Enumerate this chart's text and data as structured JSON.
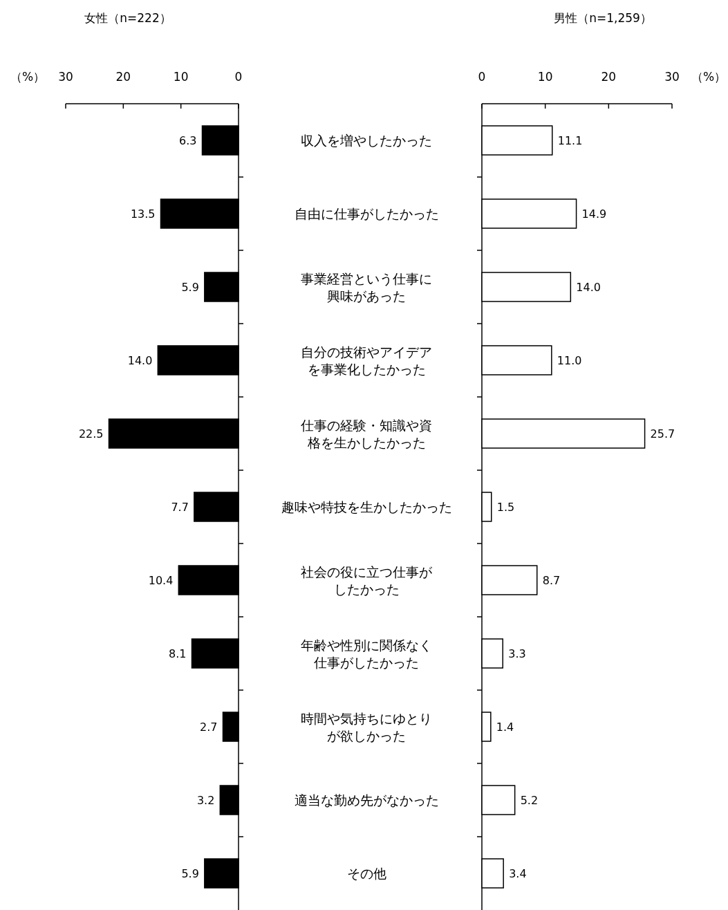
{
  "chart_data": [
    {
      "type": "bar",
      "orientation": "horizontal",
      "title": "女性（n=222）",
      "xlabel": "（%）",
      "categories": [
        "収入を増やしたかった",
        "自由に仕事がしたかった",
        "事業経営という仕事に興味があった",
        "自分の技術やアイデアを事業化したかった",
        "仕事の経験・知識や資格を生かしたかった",
        "趣味や特技を生かしたかった",
        "社会の役に立つ仕事がしたかった",
        "年齢や性別に関係なく仕事がしたかった",
        "時間や気持ちにゆとりが欲しかった",
        "適当な勤め先がなかった",
        "その他"
      ],
      "values": [
        6.3,
        13.5,
        5.9,
        14.0,
        22.5,
        7.7,
        10.4,
        8.1,
        2.7,
        3.2,
        5.9
      ],
      "value_labels": [
        "6.3",
        "13.5",
        "5.9",
        "14.0",
        "22.5",
        "7.7",
        "10.4",
        "8.1",
        "2.7",
        "3.2",
        "5.9"
      ],
      "color": "#000000",
      "xlim": [
        30,
        0
      ],
      "xticks": [
        0,
        10,
        20,
        30
      ]
    },
    {
      "type": "bar",
      "orientation": "horizontal",
      "title": "男性（n=1,259）",
      "xlabel": "（%）",
      "categories": [
        "収入を増やしたかった",
        "自由に仕事がしたかった",
        "事業経営という仕事に興味があった",
        "自分の技術やアイデアを事業化したかった",
        "仕事の経験・知識や資格を生かしたかった",
        "趣味や特技を生かしたかった",
        "社会の役に立つ仕事がしたかった",
        "年齢や性別に関係なく仕事がしたかった",
        "時間や気持ちにゆとりが欲しかった",
        "適当な勤め先がなかった",
        "その他"
      ],
      "values": [
        11.1,
        14.9,
        14.0,
        11.0,
        25.7,
        1.5,
        8.7,
        3.3,
        1.4,
        5.2,
        3.4
      ],
      "value_labels": [
        "11.1",
        "14.9",
        "14.0",
        "11.0",
        "25.7",
        "1.5",
        "8.7",
        "3.3",
        "1.4",
        "5.2",
        "3.4"
      ],
      "color": "#ffffff",
      "xlim": [
        0,
        30
      ],
      "xticks": [
        0,
        10,
        20,
        30
      ],
      "tick_labels": "x"
    }
  ]
}
